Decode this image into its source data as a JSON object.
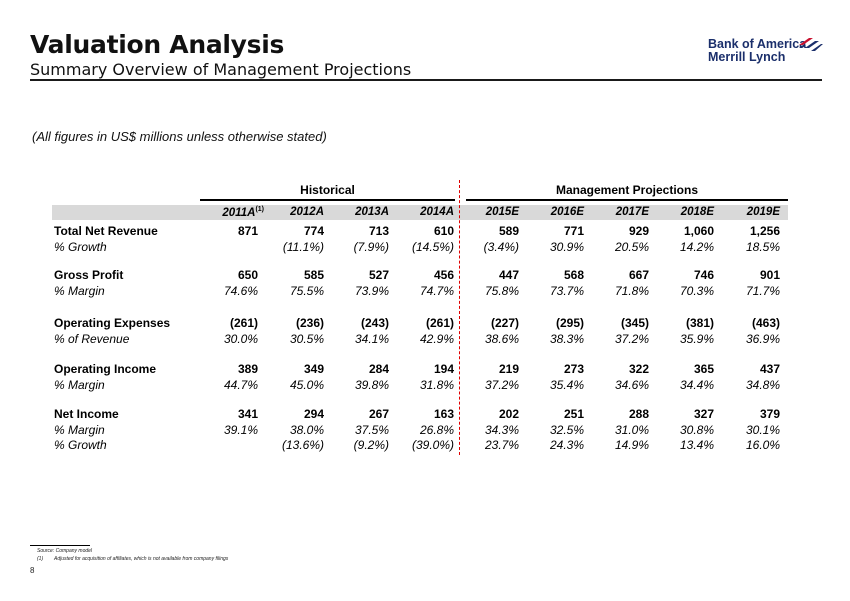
{
  "header": {
    "title": "Valuation Analysis",
    "subtitle": "Summary Overview of Management Projections",
    "logo_line1": "Bank of America",
    "logo_line2": "Merrill Lynch",
    "logo_name": "bank-of-america-flag-icon",
    "brand_color": "#1b2f6b",
    "accent_color": "#e00000"
  },
  "note": "(All figures in US$ millions unless otherwise stated)",
  "groups": {
    "historical": "Historical",
    "projections": "Management Projections"
  },
  "columns": [
    "2011A",
    "2012A",
    "2013A",
    "2014A",
    "2015E",
    "2016E",
    "2017E",
    "2018E",
    "2019E"
  ],
  "first_col_superscript": "(1)",
  "rows": [
    {
      "label": "Total Net Revenue",
      "bold": true,
      "values": [
        "871",
        "774",
        "713",
        "610",
        "589",
        "771",
        "929",
        "1,060",
        "1,256"
      ]
    },
    {
      "label": "% Growth",
      "italic": true,
      "values": [
        "",
        "(11.1%)",
        "(7.9%)",
        "(14.5%)",
        "(3.4%)",
        "30.9%",
        "20.5%",
        "14.2%",
        "18.5%"
      ]
    },
    {
      "label": "Gross Profit",
      "bold": true,
      "values": [
        "650",
        "585",
        "527",
        "456",
        "447",
        "568",
        "667",
        "746",
        "901"
      ]
    },
    {
      "label": "% Margin",
      "italic": true,
      "values": [
        "74.6%",
        "75.5%",
        "73.9%",
        "74.7%",
        "75.8%",
        "73.7%",
        "71.8%",
        "70.3%",
        "71.7%"
      ]
    },
    {
      "label": "Operating Expenses",
      "bold": true,
      "values": [
        "(261)",
        "(236)",
        "(243)",
        "(261)",
        "(227)",
        "(295)",
        "(345)",
        "(381)",
        "(463)"
      ]
    },
    {
      "label": "% of Revenue",
      "italic": true,
      "values": [
        "30.0%",
        "30.5%",
        "34.1%",
        "42.9%",
        "38.6%",
        "38.3%",
        "37.2%",
        "35.9%",
        "36.9%"
      ]
    },
    {
      "label": "Operating Income",
      "bold": true,
      "values": [
        "389",
        "349",
        "284",
        "194",
        "219",
        "273",
        "322",
        "365",
        "437"
      ]
    },
    {
      "label": "% Margin",
      "italic": true,
      "values": [
        "44.7%",
        "45.0%",
        "39.8%",
        "31.8%",
        "37.2%",
        "35.4%",
        "34.6%",
        "34.4%",
        "34.8%"
      ]
    },
    {
      "label": "Net Income",
      "bold": true,
      "values": [
        "341",
        "294",
        "267",
        "163",
        "202",
        "251",
        "288",
        "327",
        "379"
      ]
    },
    {
      "label": "% Margin",
      "italic": true,
      "values": [
        "39.1%",
        "38.0%",
        "37.5%",
        "26.8%",
        "34.3%",
        "32.5%",
        "31.0%",
        "30.8%",
        "30.1%"
      ]
    },
    {
      "label": "% Growth",
      "italic": true,
      "values": [
        "",
        "(13.6%)",
        "(9.2%)",
        "(39.0%)",
        "23.7%",
        "24.3%",
        "14.9%",
        "13.4%",
        "16.0%"
      ]
    }
  ],
  "footer": {
    "source": "Source: Company model",
    "footnote_num": "(1)",
    "footnote": "Adjusted for acquisition of affiliates, which is not available from company filings",
    "page": "8"
  }
}
